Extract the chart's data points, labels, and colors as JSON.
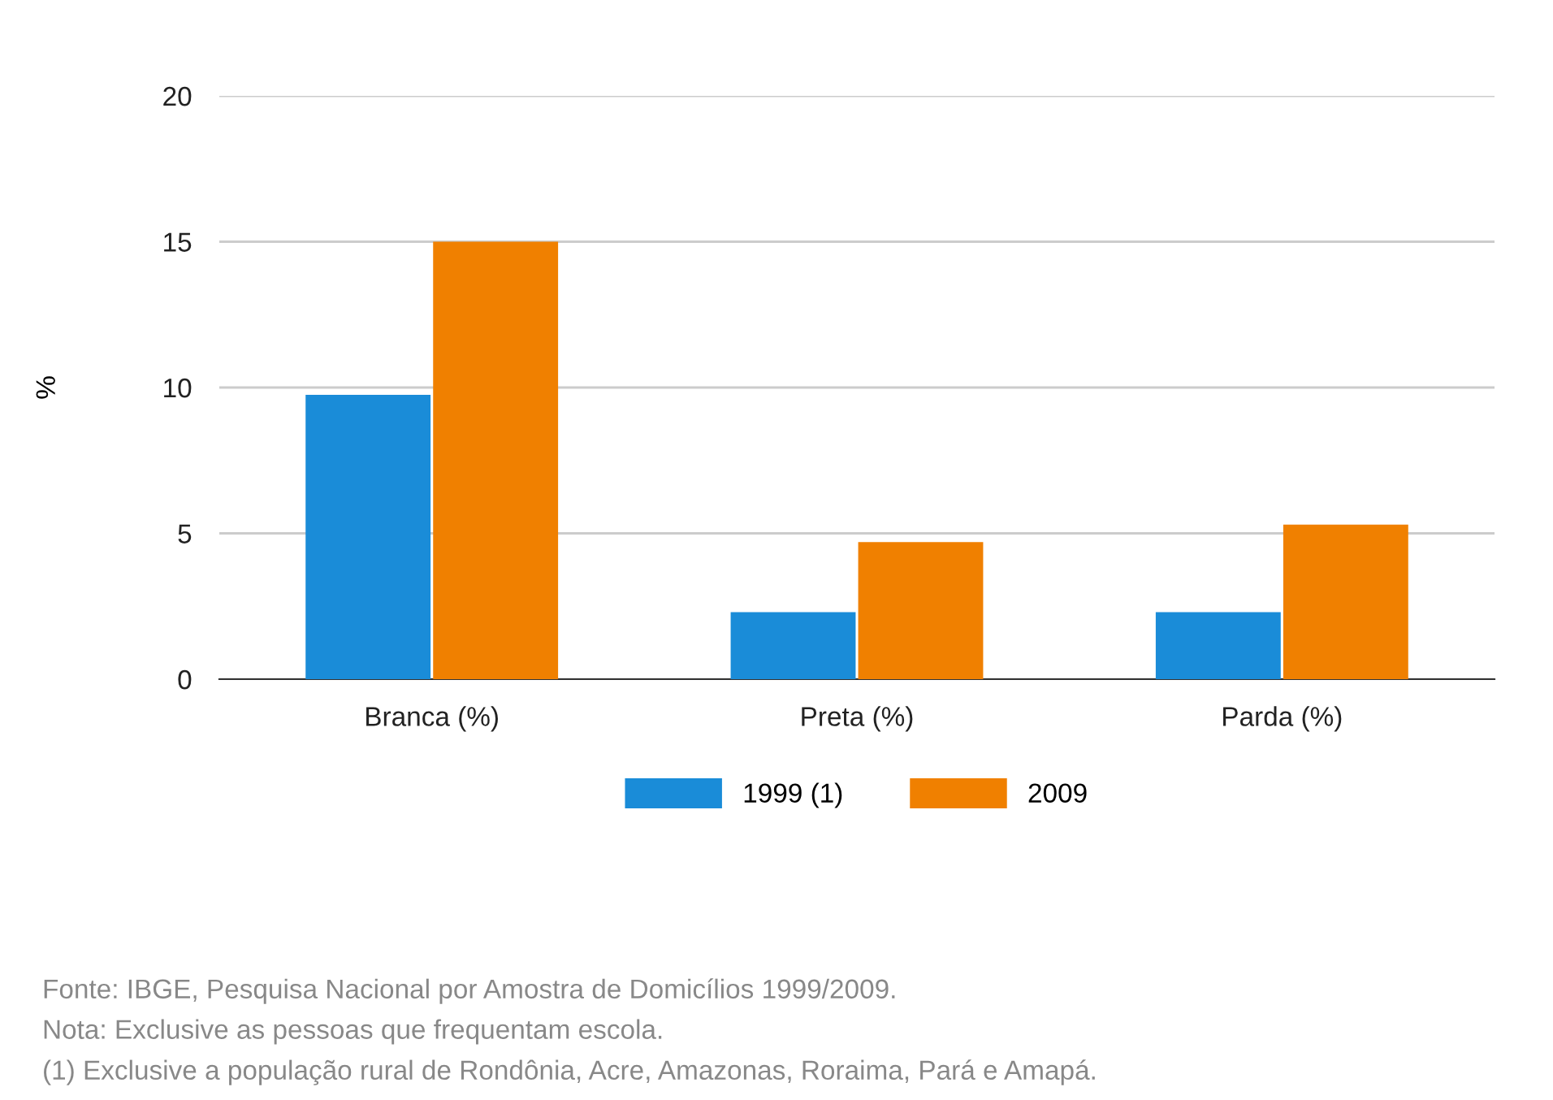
{
  "chart_data": {
    "type": "bar",
    "ylabel": "%",
    "categories": [
      "Branca (%)",
      "Preta (%)",
      "Parda (%)"
    ],
    "series": [
      {
        "name": "1999 (1)",
        "color": "#1a8cd8",
        "values": [
          9.75,
          2.3,
          2.3
        ]
      },
      {
        "name": "2009",
        "color": "#f08000",
        "values": [
          15.0,
          4.7,
          5.3
        ]
      }
    ],
    "ylim": [
      0,
      20
    ],
    "yticks": [
      0,
      5,
      10,
      15,
      20
    ],
    "grid": "y",
    "legend": "bottom",
    "annotations": [
      "Fonte: IBGE, Pesquisa Nacional por Amostra de Domicílios 1999/2009.",
      "Nota: Exclusive as pessoas que frequentam escola.",
      "(1) Exclusive a população rural de Rondônia, Acre, Amazonas, Roraima, Pará e Amapá."
    ]
  }
}
